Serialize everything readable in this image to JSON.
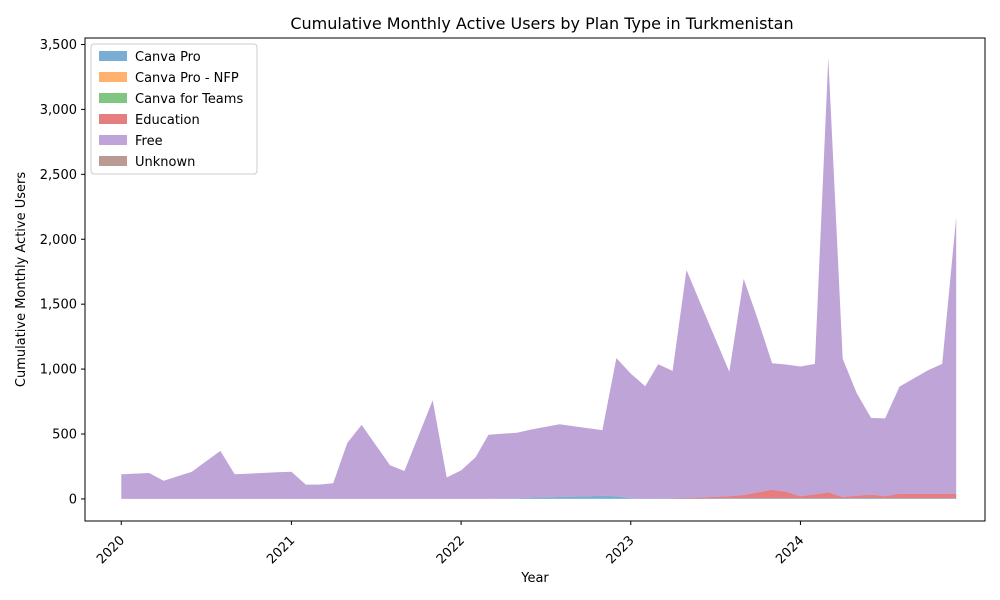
{
  "chart_data": {
    "type": "area",
    "stacked": true,
    "title": "Cumulative Monthly Active Users by Plan Type in Turkmenistan",
    "xlabel": "Year",
    "ylabel": "Cumulative Monthly Active Users",
    "xlim": [
      "2019-10-15",
      "2025-02-01"
    ],
    "ylim": [
      -170,
      3550
    ],
    "xticks": [
      {
        "date": "2020-01-01",
        "label": "2020"
      },
      {
        "date": "2021-01-01",
        "label": "2021"
      },
      {
        "date": "2022-01-01",
        "label": "2022"
      },
      {
        "date": "2023-01-01",
        "label": "2023"
      },
      {
        "date": "2024-01-01",
        "label": "2024"
      }
    ],
    "yticks": [
      {
        "value": 0,
        "label": "0"
      },
      {
        "value": 500,
        "label": "500"
      },
      {
        "value": 1000,
        "label": "1,000"
      },
      {
        "value": 1500,
        "label": "1,500"
      },
      {
        "value": 2000,
        "label": "2,000"
      },
      {
        "value": 2500,
        "label": "2,500"
      },
      {
        "value": 3000,
        "label": "3,000"
      },
      {
        "value": 3500,
        "label": "3,500"
      }
    ],
    "legend_position": "top-left",
    "grid": false,
    "x": [
      "2020-01-01",
      "2020-03-01",
      "2020-04-01",
      "2020-06-01",
      "2020-08-01",
      "2020-09-01",
      "2020-12-01",
      "2021-01-01",
      "2021-02-01",
      "2021-03-01",
      "2021-04-01",
      "2021-05-01",
      "2021-06-01",
      "2021-08-01",
      "2021-09-01",
      "2021-11-01",
      "2021-12-01",
      "2022-01-01",
      "2022-02-01",
      "2022-03-01",
      "2022-05-01",
      "2022-06-01",
      "2022-08-01",
      "2022-10-01",
      "2022-11-01",
      "2022-12-01",
      "2023-01-01",
      "2023-02-01",
      "2023-03-01",
      "2023-04-01",
      "2023-05-01",
      "2023-06-01",
      "2023-08-01",
      "2023-09-01",
      "2023-10-01",
      "2023-11-01",
      "2023-12-01",
      "2024-01-01",
      "2024-02-01",
      "2024-03-01",
      "2024-04-01",
      "2024-05-01",
      "2024-06-01",
      "2024-07-01",
      "2024-08-01",
      "2024-10-01",
      "2024-11-01",
      "2024-12-01"
    ],
    "series": [
      {
        "name": "Canva Pro",
        "color": "#1f77b4",
        "values": [
          0,
          0,
          0,
          0,
          0,
          0,
          0,
          0,
          0,
          0,
          0,
          0,
          0,
          0,
          0,
          0,
          0,
          0,
          0,
          0,
          5,
          10,
          15,
          20,
          25,
          20,
          5,
          3,
          3,
          3,
          3,
          3,
          5,
          5,
          5,
          5,
          5,
          5,
          5,
          5,
          5,
          5,
          8,
          5,
          5,
          5,
          5,
          5
        ]
      },
      {
        "name": "Canva Pro - NFP",
        "color": "#ff7f0e",
        "values": [
          0,
          0,
          0,
          0,
          0,
          0,
          0,
          0,
          0,
          0,
          0,
          0,
          0,
          0,
          0,
          0,
          0,
          0,
          0,
          0,
          0,
          0,
          0,
          0,
          0,
          0,
          0,
          0,
          0,
          0,
          0,
          0,
          0,
          0,
          0,
          0,
          0,
          0,
          0,
          0,
          0,
          0,
          0,
          0,
          0,
          0,
          0,
          0
        ]
      },
      {
        "name": "Canva for Teams",
        "color": "#2ca02c",
        "values": [
          0,
          0,
          0,
          0,
          0,
          0,
          0,
          0,
          0,
          0,
          0,
          0,
          0,
          0,
          0,
          0,
          0,
          0,
          0,
          0,
          0,
          0,
          0,
          0,
          0,
          0,
          0,
          0,
          0,
          0,
          0,
          0,
          0,
          0,
          0,
          0,
          0,
          0,
          0,
          0,
          0,
          0,
          0,
          0,
          0,
          0,
          0,
          0
        ]
      },
      {
        "name": "Education",
        "color": "#d62728",
        "values": [
          0,
          0,
          0,
          0,
          0,
          0,
          0,
          0,
          0,
          0,
          0,
          0,
          0,
          0,
          0,
          0,
          0,
          0,
          0,
          0,
          0,
          0,
          0,
          0,
          0,
          0,
          0,
          0,
          0,
          3,
          5,
          8,
          15,
          25,
          45,
          65,
          50,
          15,
          30,
          45,
          10,
          20,
          25,
          15,
          35,
          35,
          35,
          35
        ]
      },
      {
        "name": "Free",
        "color": "#9467bd",
        "values": [
          190,
          200,
          140,
          210,
          370,
          190,
          205,
          210,
          110,
          110,
          120,
          430,
          570,
          260,
          215,
          760,
          165,
          220,
          320,
          495,
          505,
          525,
          560,
          525,
          505,
          1065,
          960,
          865,
          1035,
          980,
          1755,
          1485,
          960,
          1665,
          1335,
          975,
          980,
          1000,
          1005,
          3350,
          1065,
          790,
          590,
          600,
          825,
          950,
          1000,
          2130
        ]
      },
      {
        "name": "Unknown",
        "color": "#8c564b",
        "values": [
          0,
          0,
          0,
          0,
          0,
          0,
          0,
          0,
          0,
          0,
          0,
          0,
          0,
          0,
          0,
          0,
          0,
          0,
          0,
          0,
          0,
          0,
          0,
          0,
          0,
          0,
          0,
          0,
          0,
          0,
          0,
          0,
          0,
          0,
          0,
          0,
          0,
          0,
          0,
          0,
          0,
          0,
          0,
          0,
          0,
          0,
          0,
          0
        ]
      }
    ]
  }
}
